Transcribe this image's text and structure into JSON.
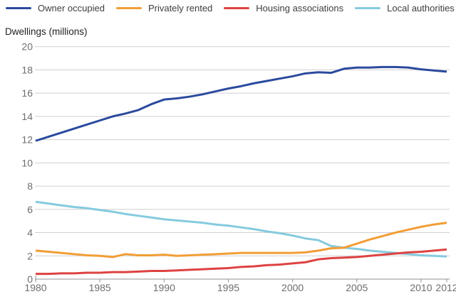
{
  "y_axis_title": "Dwellings (millions)",
  "chart_data": {
    "type": "line",
    "title": "",
    "xlabel": "",
    "ylabel": "Dwellings (millions)",
    "xlim": [
      1980,
      2012
    ],
    "ylim": [
      0,
      20
    ],
    "x_ticks": [
      1980,
      1985,
      1990,
      1995,
      2000,
      2005,
      2010,
      2012
    ],
    "y_ticks": [
      0,
      2,
      4,
      6,
      8,
      10,
      12,
      14,
      16,
      18,
      20
    ],
    "grid": "horizontal-only",
    "legend_position": "top",
    "x": [
      1980,
      1981,
      1982,
      1983,
      1984,
      1985,
      1986,
      1987,
      1988,
      1989,
      1990,
      1991,
      1992,
      1993,
      1994,
      1995,
      1996,
      1997,
      1998,
      1999,
      2000,
      2001,
      2002,
      2003,
      2004,
      2005,
      2006,
      2007,
      2008,
      2009,
      2010,
      2011,
      2012
    ],
    "series": [
      {
        "name": "Owner occupied",
        "slug": "owner-occupied",
        "color": "#2b4a9e",
        "values": [
          11.9,
          12.25,
          12.6,
          12.95,
          13.3,
          13.65,
          14.0,
          14.25,
          14.55,
          15.05,
          15.45,
          15.55,
          15.7,
          15.9,
          16.15,
          16.4,
          16.6,
          16.85,
          17.05,
          17.25,
          17.45,
          17.7,
          17.8,
          17.75,
          18.1,
          18.2,
          18.2,
          18.25,
          18.25,
          18.2,
          18.05,
          17.95,
          17.85
        ]
      },
      {
        "name": "Privately rented",
        "slug": "privately-rented",
        "color": "#f29d35",
        "values": [
          2.45,
          2.35,
          2.25,
          2.15,
          2.05,
          2.0,
          1.9,
          2.15,
          2.05,
          2.05,
          2.1,
          2.0,
          2.05,
          2.1,
          2.15,
          2.2,
          2.25,
          2.25,
          2.25,
          2.25,
          2.25,
          2.3,
          2.45,
          2.65,
          2.7,
          3.05,
          3.4,
          3.7,
          4.0,
          4.25,
          4.5,
          4.7,
          4.85
        ]
      },
      {
        "name": "Housing associations",
        "slug": "housing-associations",
        "color": "#dd4241",
        "values": [
          0.45,
          0.45,
          0.5,
          0.5,
          0.55,
          0.55,
          0.6,
          0.6,
          0.65,
          0.7,
          0.7,
          0.75,
          0.8,
          0.85,
          0.9,
          0.95,
          1.05,
          1.1,
          1.2,
          1.25,
          1.35,
          1.45,
          1.7,
          1.8,
          1.85,
          1.9,
          2.0,
          2.1,
          2.2,
          2.3,
          2.35,
          2.45,
          2.55
        ]
      },
      {
        "name": "Local authorities",
        "slug": "local-authorities",
        "color": "#85cade",
        "values": [
          6.65,
          6.5,
          6.35,
          6.2,
          6.1,
          5.95,
          5.8,
          5.6,
          5.45,
          5.3,
          5.15,
          5.05,
          4.95,
          4.85,
          4.7,
          4.6,
          4.45,
          4.3,
          4.1,
          3.95,
          3.75,
          3.5,
          3.35,
          2.85,
          2.7,
          2.6,
          2.45,
          2.35,
          2.25,
          2.15,
          2.05,
          2.0,
          1.95
        ]
      }
    ],
    "style": {
      "gridline_color": "#cfcfcf",
      "axis_color": "#909090",
      "tick_label_color": "#6d6d6d",
      "line_width": 3
    }
  }
}
